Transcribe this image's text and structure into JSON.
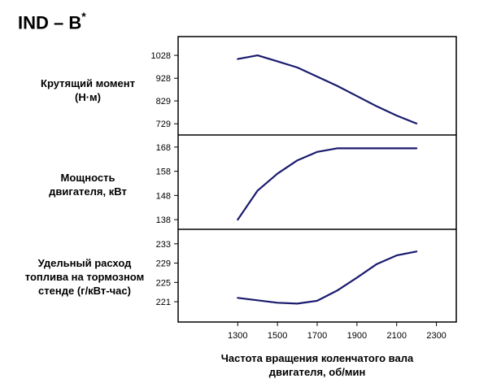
{
  "figure": {
    "title_main": "IND – B",
    "title_sup": "*"
  },
  "panels": [
    {
      "label_lines": [
        "Крутящий момент",
        "(Н·м)"
      ]
    },
    {
      "label_lines": [
        "Мощность",
        "двигателя, кВт"
      ]
    },
    {
      "label_lines": [
        "Удельный расход",
        "топлива на тормозном",
        "стенде (г/кВт-час)"
      ]
    }
  ],
  "xlabel_lines": [
    "Частота вращения коленчатого вала",
    "двигателя, об/мин"
  ],
  "colors": {
    "line": "#1a1a6e",
    "axis": "#000000"
  },
  "chart_data": [
    {
      "type": "line",
      "ylabel": "Крутящий момент (Н·м)",
      "x": [
        1300,
        1400,
        1500,
        1600,
        1700,
        1800,
        1900,
        2000,
        2100,
        2200
      ],
      "y": [
        1012,
        1028,
        1002,
        975,
        935,
        895,
        850,
        805,
        765,
        730
      ],
      "yticks": [
        729,
        829,
        928,
        1028
      ],
      "ylim": [
        680,
        1110
      ],
      "xlim": [
        1000,
        2400
      ]
    },
    {
      "type": "line",
      "ylabel": "Мощность двигателя, кВт",
      "x": [
        1300,
        1400,
        1500,
        1600,
        1700,
        1800,
        1900,
        2000,
        2100,
        2200
      ],
      "y": [
        138,
        150,
        157,
        162.5,
        166,
        167.5,
        167.5,
        167.5,
        167.5,
        167.5
      ],
      "yticks": [
        138,
        148,
        158,
        168
      ],
      "ylim": [
        134,
        173
      ],
      "xlim": [
        1000,
        2400
      ]
    },
    {
      "type": "line",
      "ylabel": "Удельный расход топлива на тормозном стенде (г/кВт-час)",
      "x": [
        1300,
        1400,
        1500,
        1600,
        1700,
        1800,
        1900,
        2000,
        2100,
        2200
      ],
      "y": [
        221.8,
        221.3,
        220.8,
        220.6,
        221.2,
        223.3,
        226,
        228.8,
        230.6,
        231.4
      ],
      "yticks": [
        221,
        225,
        229,
        233
      ],
      "ylim": [
        216.8,
        236
      ],
      "xlim": [
        1000,
        2400
      ]
    }
  ],
  "xticks": [
    1300,
    1500,
    1700,
    1900,
    2100,
    2300
  ]
}
